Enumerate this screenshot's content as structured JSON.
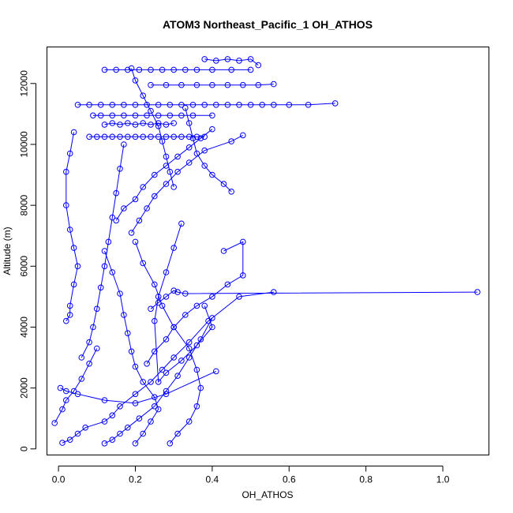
{
  "chart_data": {
    "type": "line",
    "title": "ATOM3 Northeast_Pacific_1 OH_ATHOS",
    "xlabel": "OH_ATHOS",
    "ylabel": "Altitude (m)",
    "xlim": [
      -0.03,
      1.12
    ],
    "ylim": [
      -200,
      13200
    ],
    "xticks": [
      0.0,
      0.2,
      0.4,
      0.6,
      0.8,
      1.0
    ],
    "xtick_labels": [
      "0.0",
      "0.2",
      "0.4",
      "0.6",
      "0.8",
      "1.0"
    ],
    "yticks": [
      0,
      2000,
      4000,
      6000,
      8000,
      10000,
      12000
    ],
    "ytick_labels": [
      "0",
      "2000",
      "4000",
      "6000",
      "8000",
      "10000",
      "12000"
    ],
    "grid": false,
    "point_style": "open-circle",
    "color": "#0000ff",
    "series": [
      {
        "x": [
          0.01,
          0.03,
          0.05,
          0.07,
          0.12,
          0.14,
          0.16,
          0.2,
          0.24,
          0.27,
          0.3,
          0.34,
          0.39,
          0.47,
          0.56
        ],
        "y": [
          200,
          300,
          500,
          700,
          900,
          1100,
          1400,
          1800,
          2200,
          2600,
          3000,
          3500,
          4200,
          5000,
          5150
        ]
      },
      {
        "x": [
          0.005,
          0.02,
          0.05,
          0.12,
          0.2,
          0.28,
          0.41
        ],
        "y": [
          2000,
          1900,
          1800,
          1600,
          1500,
          1800,
          2550
        ]
      },
      {
        "x": [
          -0.01,
          0.01,
          0.02,
          0.04,
          0.06,
          0.08,
          0.1
        ],
        "y": [
          850,
          1300,
          1600,
          1900,
          2300,
          2800,
          3300
        ]
      },
      {
        "x": [
          0.12,
          0.14,
          0.16,
          0.18,
          0.21,
          0.25,
          0.28,
          0.31,
          0.34,
          0.37,
          0.4
        ],
        "y": [
          180,
          300,
          500,
          700,
          1000,
          1400,
          1900,
          2400,
          3000,
          3600,
          4300
        ]
      },
      {
        "x": [
          0.2,
          0.22,
          0.24,
          0.26,
          0.25,
          0.22,
          0.2,
          0.19,
          0.18,
          0.17,
          0.16,
          0.14,
          0.12
        ],
        "y": [
          180,
          500,
          900,
          1300,
          1700,
          2200,
          2700,
          3200,
          3800,
          4400,
          5100,
          5800,
          6500
        ]
      },
      {
        "x": [
          0.29,
          0.31,
          0.34,
          0.36,
          0.37,
          0.36,
          0.34,
          0.3,
          0.27,
          0.25,
          0.22,
          0.2
        ],
        "y": [
          180,
          500,
          900,
          1400,
          2000,
          2600,
          3300,
          4000,
          4700,
          5400,
          6100,
          6800
        ]
      },
      {
        "x": [
          0.06,
          0.08,
          0.09,
          0.1,
          0.11,
          0.12,
          0.13,
          0.14,
          0.15,
          0.16,
          0.17
        ],
        "y": [
          3000,
          3500,
          4000,
          4600,
          5300,
          6000,
          6800,
          7600,
          8400,
          9200,
          10000
        ]
      },
      {
        "x": [
          0.02,
          0.03,
          0.03,
          0.04,
          0.05,
          0.04,
          0.03,
          0.02,
          0.02,
          0.03,
          0.04
        ],
        "y": [
          4200,
          4400,
          4700,
          5400,
          6000,
          6600,
          7200,
          8000,
          9100,
          9700,
          10400
        ]
      },
      {
        "x": [
          0.38,
          0.4,
          0.36,
          0.32,
          0.28,
          0.26,
          0.25,
          0.26,
          0.28,
          0.3,
          0.32
        ],
        "y": [
          4700,
          4000,
          3400,
          2900,
          2500,
          2200,
          4200,
          5000,
          5800,
          6600,
          7400
        ]
      },
      {
        "x": [
          0.43,
          0.48,
          0.48,
          0.44,
          0.4,
          0.36,
          0.33,
          0.3,
          0.28,
          0.25,
          0.23
        ],
        "y": [
          6500,
          6800,
          5700,
          5400,
          5000,
          4700,
          4400,
          4000,
          3600,
          3200,
          2800
        ]
      },
      {
        "x": [
          0.19,
          0.21,
          0.23,
          0.25,
          0.28,
          0.31,
          0.34,
          0.38,
          0.45,
          0.48
        ],
        "y": [
          7100,
          7500,
          7900,
          8300,
          8700,
          9100,
          9400,
          9800,
          10100,
          10300
        ]
      },
      {
        "x": [
          0.15,
          0.17,
          0.2,
          0.22,
          0.25,
          0.28,
          0.31,
          0.34,
          0.37,
          0.4
        ],
        "y": [
          7500,
          7900,
          8200,
          8600,
          9000,
          9300,
          9600,
          9900,
          10200,
          10500
        ]
      },
      {
        "x": [
          0.08,
          0.1,
          0.12,
          0.14,
          0.16,
          0.18,
          0.2,
          0.22,
          0.24,
          0.26,
          0.28,
          0.3,
          0.32,
          0.34,
          0.36,
          0.38
        ],
        "y": [
          10250,
          10250,
          10250,
          10250,
          10250,
          10250,
          10250,
          10250,
          10250,
          10250,
          10250,
          10250,
          10250,
          10250,
          10250,
          10250
        ]
      },
      {
        "x": [
          0.05,
          0.08,
          0.11,
          0.14,
          0.17,
          0.2,
          0.23,
          0.26,
          0.29,
          0.32,
          0.35,
          0.38,
          0.41,
          0.44,
          0.47,
          0.5,
          0.53,
          0.56,
          0.6,
          0.65,
          0.72
        ],
        "y": [
          11300,
          11300,
          11300,
          11300,
          11300,
          11300,
          11300,
          11300,
          11300,
          11300,
          11300,
          11300,
          11300,
          11300,
          11300,
          11300,
          11300,
          11300,
          11300,
          11300,
          11350
        ]
      },
      {
        "x": [
          0.12,
          0.14,
          0.16,
          0.18,
          0.2,
          0.22,
          0.24,
          0.26,
          0.28,
          0.3
        ],
        "y": [
          10650,
          10700,
          10650,
          10700,
          10650,
          10700,
          10650,
          10700,
          10650,
          10700
        ]
      },
      {
        "x": [
          0.09,
          0.11,
          0.14,
          0.17,
          0.2,
          0.23,
          0.26,
          0.29,
          0.32,
          0.35,
          0.4
        ],
        "y": [
          10950,
          10950,
          10950,
          10950,
          10950,
          10950,
          10950,
          10950,
          10950,
          10950,
          10950
        ]
      },
      {
        "x": [
          0.12,
          0.15,
          0.18,
          0.21,
          0.24,
          0.27,
          0.3,
          0.33,
          0.36,
          0.4,
          0.45,
          0.5
        ],
        "y": [
          12450,
          12450,
          12450,
          12450,
          12450,
          12450,
          12450,
          12450,
          12450,
          12450,
          12450,
          12450
        ]
      },
      {
        "x": [
          0.38,
          0.41,
          0.44,
          0.47,
          0.5,
          0.52
        ],
        "y": [
          12800,
          12750,
          12800,
          12750,
          12800,
          12600
        ]
      },
      {
        "x": [
          0.24,
          0.28,
          0.32,
          0.36,
          0.4,
          0.44,
          0.48,
          0.52,
          0.56
        ],
        "y": [
          11950,
          11950,
          11950,
          11950,
          11950,
          11950,
          11950,
          11950,
          11980
        ]
      },
      {
        "x": [
          0.19,
          0.2,
          0.22,
          0.24,
          0.26,
          0.27,
          0.28,
          0.29,
          0.3
        ],
        "y": [
          12500,
          12100,
          11600,
          11100,
          10600,
          10100,
          9600,
          9100,
          8600
        ]
      },
      {
        "x": [
          0.33,
          0.34,
          0.35,
          0.36,
          0.38,
          0.4,
          0.43,
          0.45
        ],
        "y": [
          11200,
          10700,
          10200,
          9700,
          9300,
          9000,
          8700,
          8450
        ]
      },
      {
        "x": [
          0.24,
          0.26,
          0.28,
          0.3,
          0.31,
          0.33,
          1.09
        ],
        "y": [
          4600,
          4800,
          5000,
          5200,
          5150,
          5100,
          5150
        ]
      }
    ]
  }
}
